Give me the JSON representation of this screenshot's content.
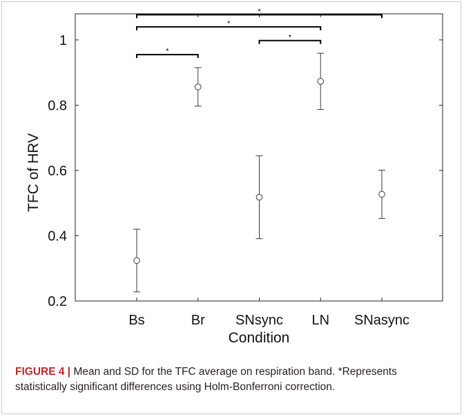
{
  "chart_data": {
    "type": "scatter",
    "subtype": "errorbar",
    "categories": [
      "Bs",
      "Br",
      "SNsync",
      "LN",
      "SNasync"
    ],
    "series": [
      {
        "mean": [
          0.324,
          0.856,
          0.518,
          0.873,
          0.527
        ],
        "sd": [
          0.096,
          0.059,
          0.127,
          0.086,
          0.074
        ]
      }
    ],
    "xlabel": "Condition",
    "ylabel": "TFC of HRV",
    "ylim": [
      0.2,
      1.08
    ],
    "yticks": [
      0.2,
      0.4,
      0.6,
      0.8,
      1
    ],
    "ytick_labels": [
      "0.2",
      "0.4",
      "0.6",
      "0.8",
      "1"
    ],
    "grid": false,
    "significance": [
      {
        "from": "Bs",
        "to": "Br",
        "y": 0.955,
        "label": "*"
      },
      {
        "from": "SNsync",
        "to": "LN",
        "y": 0.998,
        "label": "*"
      },
      {
        "from": "Bs",
        "to": "LN",
        "y": 1.04,
        "label": "*"
      },
      {
        "from": "Bs",
        "to": "SNasync",
        "y": 1.077,
        "label": "*"
      }
    ]
  },
  "caption": {
    "label": "FIGURE 4 |",
    "text": " Mean and SD for the TFC average on respiration band. *Represents statistically significant differences using Holm-Bonferroni correction."
  },
  "colors": {
    "marker": "#3a3a3a",
    "axis": "#222222",
    "bracket": "#000000",
    "caption_label": "#c1272d",
    "frame": "#c9c9c9"
  }
}
